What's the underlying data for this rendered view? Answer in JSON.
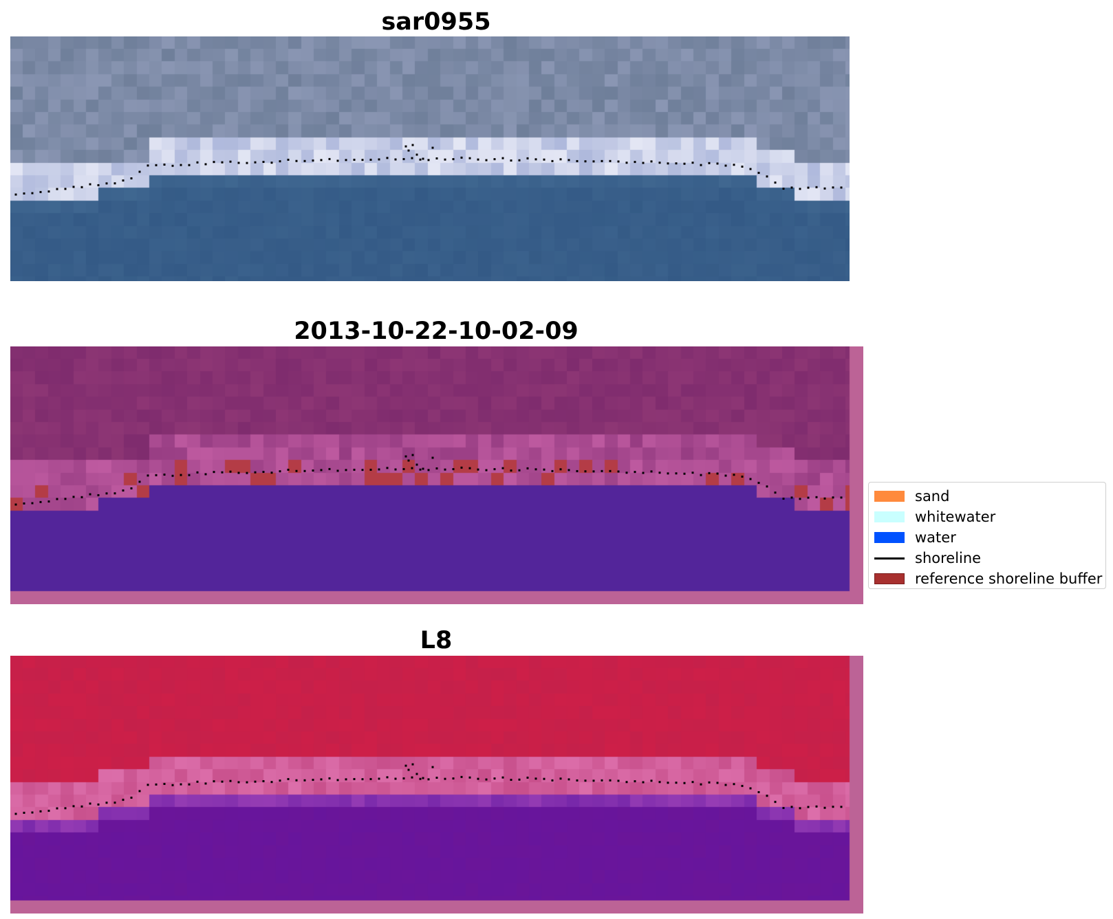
{
  "figure": {
    "panels": [
      {
        "id": "rgb",
        "title": "sar0955",
        "style": "rgb",
        "has_frame": false
      },
      {
        "id": "classified",
        "title": "2013-10-22-10-02-09",
        "style": "classified",
        "has_frame": true
      },
      {
        "id": "index",
        "title": "L8",
        "style": "index",
        "has_frame": true
      }
    ],
    "frame_color": "#bc6396"
  },
  "legend": {
    "placement": "right of middle panel",
    "items": [
      {
        "label": "sand",
        "kind": "patch",
        "color": "#ff8a3d",
        "edge": "#ff8a3d"
      },
      {
        "label": "whitewater",
        "kind": "patch",
        "color": "#c9ffff",
        "edge": "#c9ffff"
      },
      {
        "label": "water",
        "kind": "patch",
        "color": "#0052ff",
        "edge": "#0052ff"
      },
      {
        "label": "shoreline",
        "kind": "line",
        "color": "#000000"
      },
      {
        "label": "reference shoreline buffer",
        "kind": "patch",
        "color": "#a8302f",
        "edge": "#7a1c1c"
      }
    ]
  },
  "colors": {
    "water_class": "#53259a",
    "land_purple": "#7f2c6e",
    "index_red": "#c5204a",
    "index_purple": "#6a1599",
    "rgb_water": "#345a86",
    "rgb_land": "#6f7f9a"
  }
}
